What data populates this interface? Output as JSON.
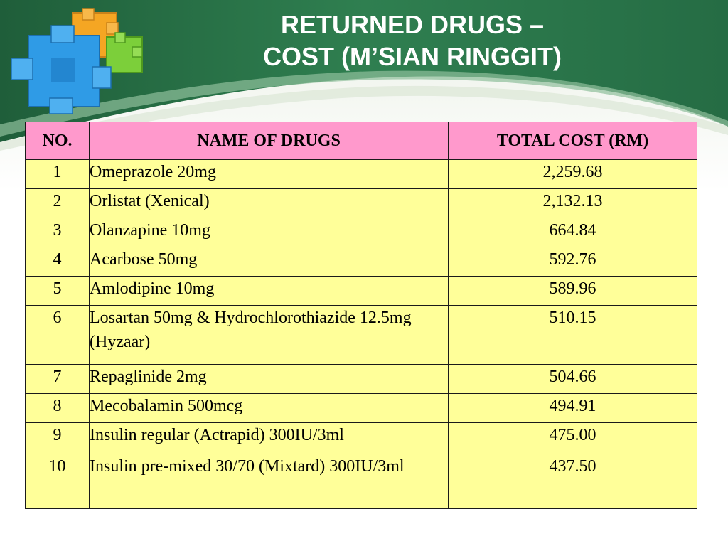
{
  "slide": {
    "title_line1": "RETURNED DRUGS –",
    "title_line2": "COST (M’SIAN RINGGIT)",
    "colors": {
      "header_bg": "#ff99cc",
      "cell_bg": "#ffff99",
      "banner_green": "#2e7a4e",
      "title_text": "#ffffff"
    },
    "logo_icon": "puzzle-blocks-icon"
  },
  "table": {
    "headers": {
      "no": "NO.",
      "name": "NAME OF DRUGS",
      "cost": "TOTAL COST (RM)"
    },
    "rows": [
      {
        "no": "1",
        "name": "Omeprazole 20mg",
        "cost": "2,259.68"
      },
      {
        "no": "2",
        "name": "Orlistat (Xenical)",
        "cost": "2,132.13"
      },
      {
        "no": "3",
        "name": "Olanzapine 10mg",
        "cost": "664.84"
      },
      {
        "no": "4",
        "name": "Acarbose 50mg",
        "cost": "592.76"
      },
      {
        "no": "5",
        "name": "Amlodipine 10mg",
        "cost": "589.96"
      },
      {
        "no": "6",
        "name": "Losartan 50mg & Hydrochlorothiazide 12.5mg (Hyzaar)",
        "cost": "510.15"
      },
      {
        "no": "7",
        "name": "Repaglinide 2mg",
        "cost": "504.66"
      },
      {
        "no": "8",
        "name": "Mecobalamin 500mcg",
        "cost": "494.91"
      },
      {
        "no": "9",
        "name": "Insulin regular (Actrapid) 300IU/3ml",
        "cost": "475.00"
      },
      {
        "no": "10",
        "name": "Insulin pre-mixed 30/70 (Mixtard) 300IU/3ml",
        "cost": "437.50"
      }
    ]
  }
}
